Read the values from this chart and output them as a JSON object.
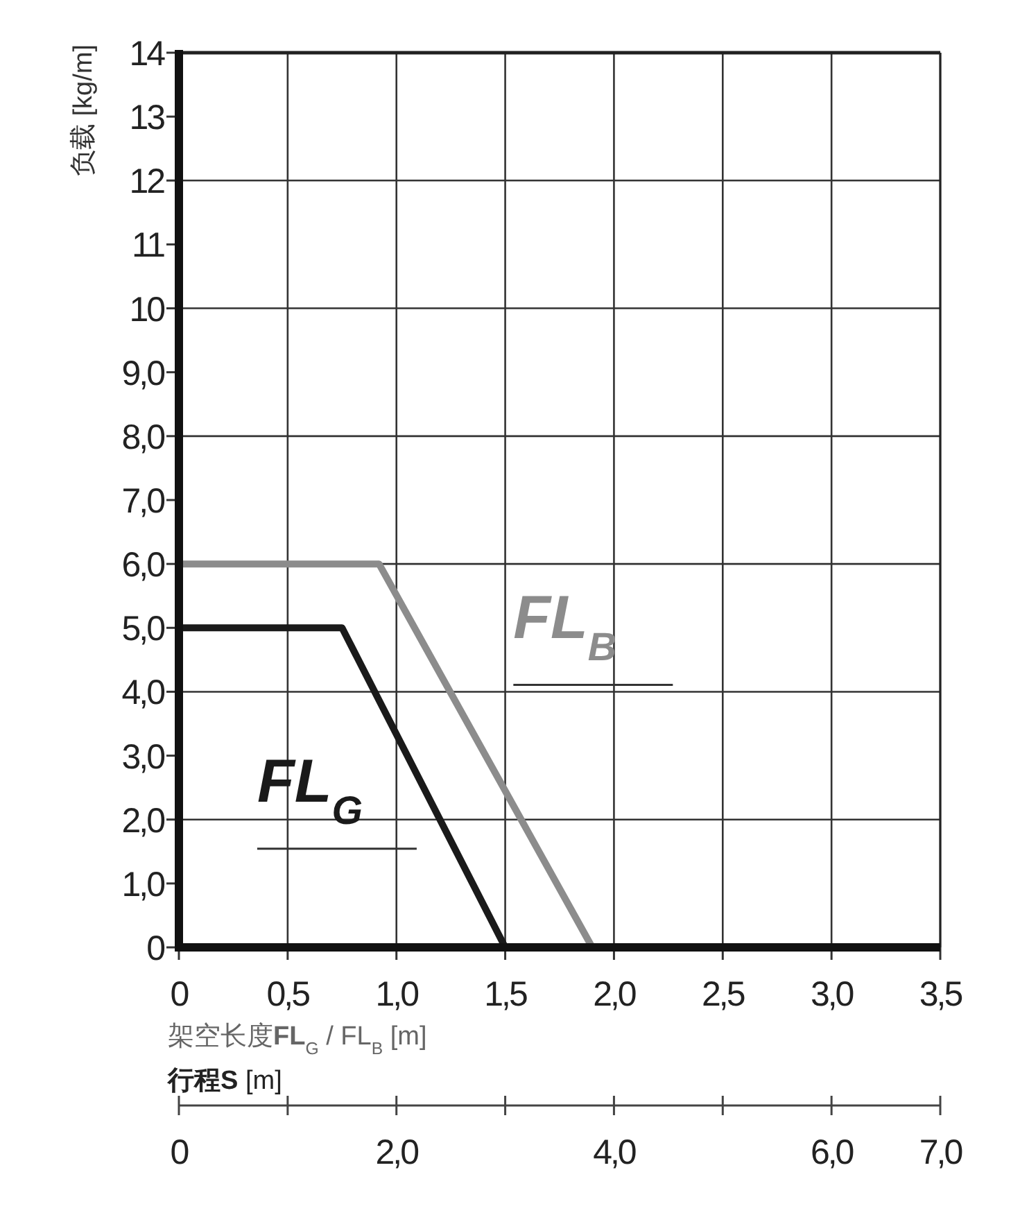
{
  "chart_data": {
    "type": "line",
    "xlabel": "架空长度**FL**$_{G}$ / FL$_{B}$ [m]",
    "x2label": "**行程S** [m]",
    "ylabel": "负载 [kg/m]",
    "series": [
      {
        "name": "FL$_{G}$",
        "color": "#1a1a1a",
        "x": [
          0,
          0.75,
          1.5
        ],
        "values": [
          5,
          5,
          0
        ]
      },
      {
        "name": "FL$_{B}$",
        "color": "#8c8c8c",
        "x": [
          0,
          0.92,
          1.9
        ],
        "values": [
          6,
          6,
          0
        ]
      }
    ],
    "xlim": [
      0,
      3.5
    ],
    "xticks": [
      0,
      {
        "value": 0.5,
        "label": "0,5"
      },
      {
        "value": 1,
        "label": "1,0"
      },
      {
        "value": 1.5,
        "label": "1,5"
      },
      {
        "value": 2,
        "label": "2,0"
      },
      {
        "value": 2.5,
        "label": "2,5"
      },
      {
        "value": 3,
        "label": "3,0"
      },
      {
        "value": 3.5,
        "label": "3,5"
      }
    ],
    "x2lim": [
      0,
      7
    ],
    "x2ticks": [
      0,
      {
        "value": 1,
        "label": null
      },
      {
        "value": 2,
        "label": "2,0"
      },
      {
        "value": 3,
        "label": null
      },
      {
        "value": 4,
        "label": "4,0"
      },
      {
        "value": 5,
        "label": null
      },
      {
        "value": 6,
        "label": "6,0"
      },
      {
        "value": 7,
        "label": "7,0"
      }
    ],
    "ylim": [
      0,
      14
    ],
    "yticks": [
      0,
      {
        "value": 1,
        "label": "1,0"
      },
      {
        "value": 2,
        "label": "2,0"
      },
      {
        "value": 3,
        "label": "3,0"
      },
      {
        "value": 4,
        "label": "4,0"
      },
      {
        "value": 5,
        "label": "5,0"
      },
      {
        "value": 6,
        "label": "6,0"
      },
      {
        "value": 7,
        "label": "7,0"
      },
      {
        "value": 8,
        "label": "8,0"
      },
      {
        "value": 9,
        "label": "9,0"
      },
      10,
      11,
      12,
      13,
      14
    ],
    "grid": true,
    "legend": false,
    "marker": "none",
    "line_style": "solid"
  }
}
